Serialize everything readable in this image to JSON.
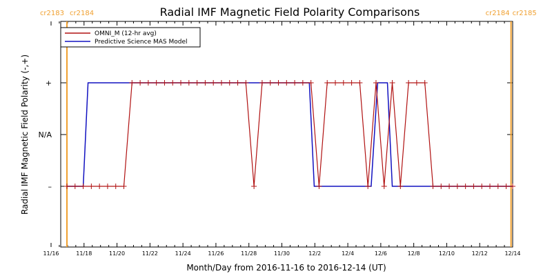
{
  "chart_data": {
    "type": "line",
    "title": "Radial IMF Magnetic Field Polarity Comparisons",
    "xlabel": "Month/Day from 2016-11-16 to 2016-12-14 (UT)",
    "ylabel": "Radial IMF Magnetic Field Polarity (-,+)",
    "x_range": [
      "2016-11-16",
      "2016-12-14"
    ],
    "x_ticks": [
      "11/16",
      "11/18",
      "11/20",
      "11/22",
      "11/24",
      "11/26",
      "11/28",
      "11/30",
      "12/2",
      "12/4",
      "12/6",
      "12/8",
      "12/10",
      "12/12",
      "12/14"
    ],
    "y_ticks": [
      "+",
      "N/A",
      "–"
    ],
    "y_values_meaning": {
      "+": 1,
      "N/A": 0,
      "–": -1
    },
    "carrington_markers": [
      {
        "label_left": "cr2183",
        "label_right": "cr2184",
        "x_days": 0.5,
        "color": "#f0a030"
      },
      {
        "label_left": "cr2184",
        "label_right": "cr2185",
        "x_days": 27.8,
        "color": "#f0a030"
      }
    ],
    "series": [
      {
        "name": "OMNI_M (12-hr avg)",
        "color": "#b01010",
        "marker": "+",
        "x_days": [
          0.5,
          1.0,
          1.5,
          2.0,
          2.5,
          3.0,
          3.5,
          4.0,
          4.5,
          5.0,
          5.5,
          6.0,
          6.5,
          7.0,
          7.5,
          8.0,
          8.5,
          9.0,
          9.5,
          10.0,
          10.5,
          11.0,
          11.5,
          12.0,
          12.5,
          13.0,
          13.5,
          14.0,
          14.5,
          15.0,
          15.5,
          16.0,
          16.5,
          17.0,
          17.5,
          18.0,
          18.5,
          19.0,
          19.5,
          20.0,
          20.5,
          21.0,
          21.5,
          22.0,
          22.5,
          23.0,
          23.5,
          24.0,
          24.5,
          25.0,
          25.5,
          26.0,
          26.5,
          27.0,
          27.5,
          27.9
        ],
        "y": [
          -1,
          -1,
          -1,
          -1,
          -1,
          -1,
          -1,
          -1,
          1,
          1,
          1,
          1,
          1,
          1,
          1,
          1,
          1,
          1,
          1,
          1,
          1,
          1,
          1,
          -1,
          1,
          1,
          1,
          1,
          1,
          1,
          1,
          -1,
          1,
          1,
          1,
          1,
          1,
          -1,
          1,
          -1,
          1,
          -1,
          1,
          1,
          1,
          -1,
          -1,
          -1,
          -1,
          -1,
          -1,
          -1,
          -1,
          -1,
          -1,
          -1
        ]
      },
      {
        "name": "Predictive Science MAS Model",
        "color": "#1010c0",
        "points": [
          [
            0.5,
            -1
          ],
          [
            1.5,
            -1
          ],
          [
            1.8,
            1
          ],
          [
            15.4,
            1
          ],
          [
            15.7,
            -1
          ],
          [
            19.2,
            -1
          ],
          [
            19.6,
            1
          ],
          [
            20.2,
            1
          ],
          [
            20.5,
            -1
          ],
          [
            27.9,
            -1
          ]
        ]
      }
    ]
  },
  "legend": [
    {
      "label": "OMNI_M (12-hr avg)",
      "color": "#b01010"
    },
    {
      "label": "Predictive Science MAS Model",
      "color": "#1010c0"
    }
  ]
}
